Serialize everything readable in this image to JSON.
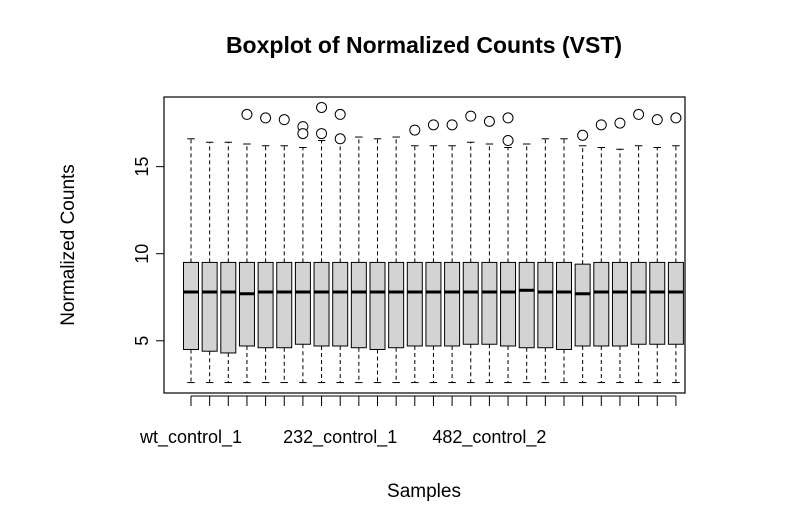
{
  "chart_data": {
    "type": "boxplot",
    "title": "Boxplot of Normalized Counts (VST)",
    "xlabel": "Samples",
    "ylabel": "Normalized Counts",
    "ylim": [
      2,
      19
    ],
    "yticks": [
      5,
      10,
      15
    ],
    "x_tick_labels_shown": [
      {
        "index": 1,
        "label": "wt_control_1"
      },
      {
        "index": 9,
        "label": "232_control_1"
      },
      {
        "index": 17,
        "label": "482_control_2"
      }
    ],
    "grid": false,
    "legend": "none",
    "box_fill": "#d3d3d3",
    "series": [
      {
        "min": 2.6,
        "q1": 4.5,
        "median": 7.8,
        "q3": 9.5,
        "max": 16.6,
        "outliers": []
      },
      {
        "min": 2.6,
        "q1": 4.4,
        "median": 7.8,
        "q3": 9.5,
        "max": 16.4,
        "outliers": []
      },
      {
        "min": 2.6,
        "q1": 4.3,
        "median": 7.8,
        "q3": 9.5,
        "max": 16.4,
        "outliers": []
      },
      {
        "min": 2.6,
        "q1": 4.7,
        "median": 7.7,
        "q3": 9.5,
        "max": 16.3,
        "outliers": [
          18.0
        ]
      },
      {
        "min": 2.6,
        "q1": 4.6,
        "median": 7.8,
        "q3": 9.5,
        "max": 16.2,
        "outliers": [
          17.8
        ]
      },
      {
        "min": 2.6,
        "q1": 4.6,
        "median": 7.8,
        "q3": 9.5,
        "max": 16.2,
        "outliers": [
          17.7
        ]
      },
      {
        "min": 2.6,
        "q1": 4.8,
        "median": 7.8,
        "q3": 9.5,
        "max": 16.1,
        "outliers": [
          17.3,
          16.9
        ]
      },
      {
        "min": 2.6,
        "q1": 4.7,
        "median": 7.8,
        "q3": 9.5,
        "max": 16.5,
        "outliers": [
          18.4,
          16.9
        ]
      },
      {
        "min": 2.6,
        "q1": 4.7,
        "median": 7.8,
        "q3": 9.5,
        "max": 16.4,
        "outliers": [
          18.0,
          16.6
        ]
      },
      {
        "min": 2.6,
        "q1": 4.6,
        "median": 7.8,
        "q3": 9.5,
        "max": 16.7,
        "outliers": []
      },
      {
        "min": 2.6,
        "q1": 4.5,
        "median": 7.8,
        "q3": 9.5,
        "max": 16.6,
        "outliers": []
      },
      {
        "min": 2.6,
        "q1": 4.6,
        "median": 7.8,
        "q3": 9.5,
        "max": 16.7,
        "outliers": []
      },
      {
        "min": 2.6,
        "q1": 4.7,
        "median": 7.8,
        "q3": 9.5,
        "max": 16.2,
        "outliers": [
          17.1
        ]
      },
      {
        "min": 2.6,
        "q1": 4.7,
        "median": 7.8,
        "q3": 9.5,
        "max": 16.2,
        "outliers": [
          17.4
        ]
      },
      {
        "min": 2.6,
        "q1": 4.7,
        "median": 7.8,
        "q3": 9.5,
        "max": 16.2,
        "outliers": [
          17.4
        ]
      },
      {
        "min": 2.6,
        "q1": 4.8,
        "median": 7.8,
        "q3": 9.5,
        "max": 16.4,
        "outliers": [
          17.9
        ]
      },
      {
        "min": 2.6,
        "q1": 4.8,
        "median": 7.8,
        "q3": 9.5,
        "max": 16.3,
        "outliers": [
          17.6
        ]
      },
      {
        "min": 2.6,
        "q1": 4.7,
        "median": 7.8,
        "q3": 9.5,
        "max": 16.1,
        "outliers": [
          17.8,
          16.5
        ]
      },
      {
        "min": 2.6,
        "q1": 4.6,
        "median": 7.9,
        "q3": 9.5,
        "max": 16.3,
        "outliers": []
      },
      {
        "min": 2.6,
        "q1": 4.6,
        "median": 7.8,
        "q3": 9.5,
        "max": 16.6,
        "outliers": []
      },
      {
        "min": 2.6,
        "q1": 4.5,
        "median": 7.8,
        "q3": 9.5,
        "max": 16.6,
        "outliers": []
      },
      {
        "min": 2.6,
        "q1": 4.7,
        "median": 7.7,
        "q3": 9.4,
        "max": 16.2,
        "outliers": [
          16.8
        ]
      },
      {
        "min": 2.6,
        "q1": 4.7,
        "median": 7.8,
        "q3": 9.5,
        "max": 16.1,
        "outliers": [
          17.4
        ]
      },
      {
        "min": 2.6,
        "q1": 4.7,
        "median": 7.8,
        "q3": 9.5,
        "max": 16.0,
        "outliers": [
          17.5
        ]
      },
      {
        "min": 2.6,
        "q1": 4.8,
        "median": 7.8,
        "q3": 9.5,
        "max": 16.2,
        "outliers": [
          18.0
        ]
      },
      {
        "min": 2.6,
        "q1": 4.8,
        "median": 7.8,
        "q3": 9.5,
        "max": 16.1,
        "outliers": [
          17.7
        ]
      },
      {
        "min": 2.6,
        "q1": 4.8,
        "median": 7.8,
        "q3": 9.5,
        "max": 16.2,
        "outliers": [
          17.8
        ]
      }
    ]
  }
}
